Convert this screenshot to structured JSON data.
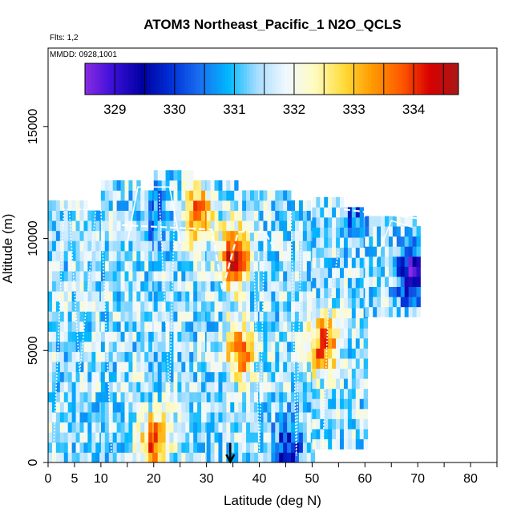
{
  "chart_data": {
    "type": "heatmap",
    "title": "ATOM3 Northeast_Pacific_1 N2O_QCLS",
    "flights_label": "Flts: 1,2",
    "date_label": "MMDD: 0928,1001",
    "xlabel": "Latitude (deg N)",
    "ylabel": "Altitude (m)",
    "xlim": [
      0,
      85
    ],
    "ylim": [
      0,
      18500
    ],
    "x_ticks": [
      0,
      5,
      10,
      20,
      30,
      40,
      50,
      60,
      70,
      80
    ],
    "y_ticks": [
      0,
      5000,
      10000,
      15000
    ],
    "y_tick_labels": [
      "0",
      "5000",
      "10000",
      "15000"
    ],
    "colorbar": {
      "min": 328.5,
      "max": 334.75,
      "ticks": [
        329,
        330,
        331,
        332,
        333,
        334
      ],
      "colors": [
        "#8a2be2",
        "#3a0fd8",
        "#0000a0",
        "#0030d8",
        "#1a6ff0",
        "#00b8ff",
        "#a8deff",
        "#f0f8ff",
        "#fffbc0",
        "#ffdc3a",
        "#ff9a00",
        "#ff5a00",
        "#d80000",
        "#a81818"
      ]
    },
    "arrow_marker": {
      "latitude": 34.5,
      "altitude": 800
    },
    "profiles": [
      {
        "lat_min": 0,
        "lat_max": 10,
        "alt_min": 0,
        "alt_max": 11500
      },
      {
        "lat_min": 10,
        "lat_max": 20,
        "alt_min": 0,
        "alt_max": 12400
      },
      {
        "lat_min": 20,
        "lat_max": 30,
        "alt_min": 0,
        "alt_max": 12900
      },
      {
        "lat_min": 30,
        "lat_max": 40,
        "alt_min": 0,
        "alt_max": 12200
      },
      {
        "lat_min": 40,
        "lat_max": 50,
        "alt_min": 0,
        "alt_max": 11800
      },
      {
        "lat_min": 50,
        "lat_max": 60,
        "alt_min": 600,
        "alt_max": 11500
      },
      {
        "lat_min": 60,
        "lat_max": 70.5,
        "alt_min": 6500,
        "alt_max": 11000
      }
    ],
    "anomalies": [
      {
        "lat": 35,
        "alt": 9000,
        "value": 334.4
      },
      {
        "lat": 28,
        "alt": 10800,
        "value": 333.8
      },
      {
        "lat": 68.5,
        "alt": 8200,
        "value": 328.9
      },
      {
        "lat": 52,
        "alt": 5000,
        "value": 334.0
      },
      {
        "lat": 36,
        "alt": 4800,
        "value": 333.7
      },
      {
        "lat": 20,
        "alt": 700,
        "value": 334.0
      },
      {
        "lat": 45,
        "alt": 300,
        "value": 329.8
      },
      {
        "lat": 58,
        "alt": 11200,
        "value": 330.2
      },
      {
        "lat": 20,
        "alt": 10800,
        "value": 330.5
      }
    ]
  }
}
